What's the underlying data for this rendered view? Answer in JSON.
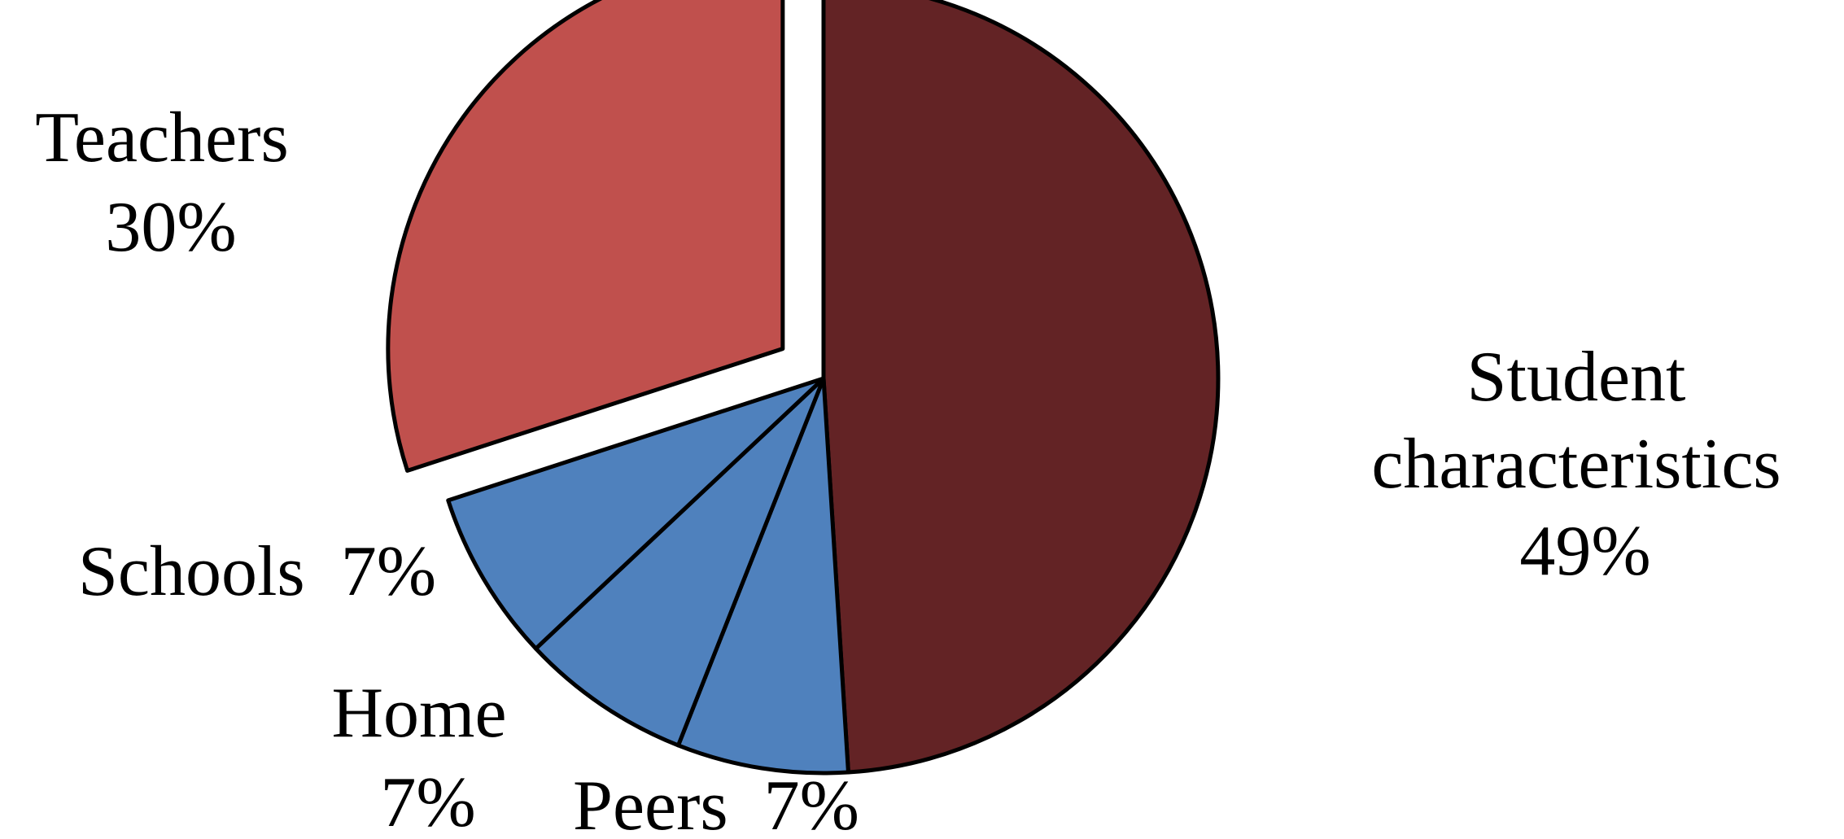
{
  "chart_data": {
    "type": "pie",
    "title": "",
    "slices": [
      {
        "name": "Student characteristics",
        "value": 49,
        "value_label": "49%",
        "color": "#632325",
        "exploded": false
      },
      {
        "name": "Peers",
        "value": 7,
        "value_label": "7%",
        "color": "#4f81bd",
        "exploded": false
      },
      {
        "name": "Home",
        "value": 7,
        "value_label": "7%",
        "color": "#4f81bd",
        "exploded": false
      },
      {
        "name": "Schools",
        "value": 7,
        "value_label": "7%",
        "color": "#4f81bd",
        "exploded": false
      },
      {
        "name": "Teachers",
        "value": 30,
        "value_label": "30%",
        "color": "#c0504d",
        "exploded": true
      }
    ],
    "legend": "none",
    "start_angle": "12 o'clock, clockwise"
  }
}
